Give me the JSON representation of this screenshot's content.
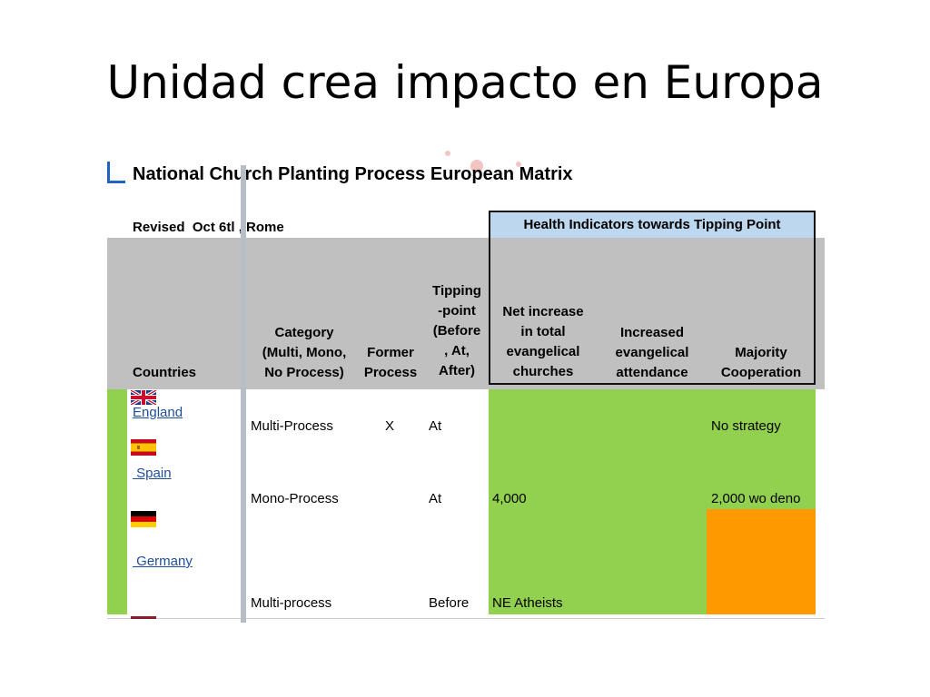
{
  "slide": {
    "title": "Unidad crea impacto en Europa"
  },
  "matrix": {
    "title": "National Church Planting Process European Matrix",
    "revised": "Revised  Oct 6tl , Rome",
    "health_header": "Health Indicators towards Tipping Point",
    "colors": {
      "green": "#92d050",
      "orange": "#ff9900",
      "header_gray": "#c0c0c0",
      "header_blue": "#bdd7ee"
    },
    "columns": {
      "countries": "Countries",
      "category": [
        "Category",
        "(Multi, Mono,",
        "No Process)"
      ],
      "former": [
        "Former",
        "Process"
      ],
      "tipping": [
        "Tipping",
        "-point",
        "(Before",
        ", At,",
        "After)"
      ],
      "net_increase": [
        "Net increase",
        "in total",
        "evangelical",
        "churches"
      ],
      "attendance": [
        "Increased",
        "evangelical",
        "attendance"
      ],
      "cooperation": [
        "Majority",
        "Cooperation"
      ]
    },
    "rows": [
      {
        "country": "England",
        "flag": "uk-flag-icon",
        "category": "Multi-Process",
        "former": "X",
        "tipping": "At",
        "net_increase": "",
        "cooperation": "No strategy"
      },
      {
        "country": " Spain",
        "flag": "spain-flag-icon",
        "category": "Mono-Process",
        "former": "",
        "tipping": "At",
        "net_increase": "4,000",
        "cooperation": "2,000 wo deno"
      },
      {
        "country": " Germany",
        "flag": "germany-flag-icon",
        "category": "Multi-process",
        "former": "",
        "tipping": "Before",
        "net_increase": "NE Atheists",
        "cooperation": ""
      }
    ]
  }
}
